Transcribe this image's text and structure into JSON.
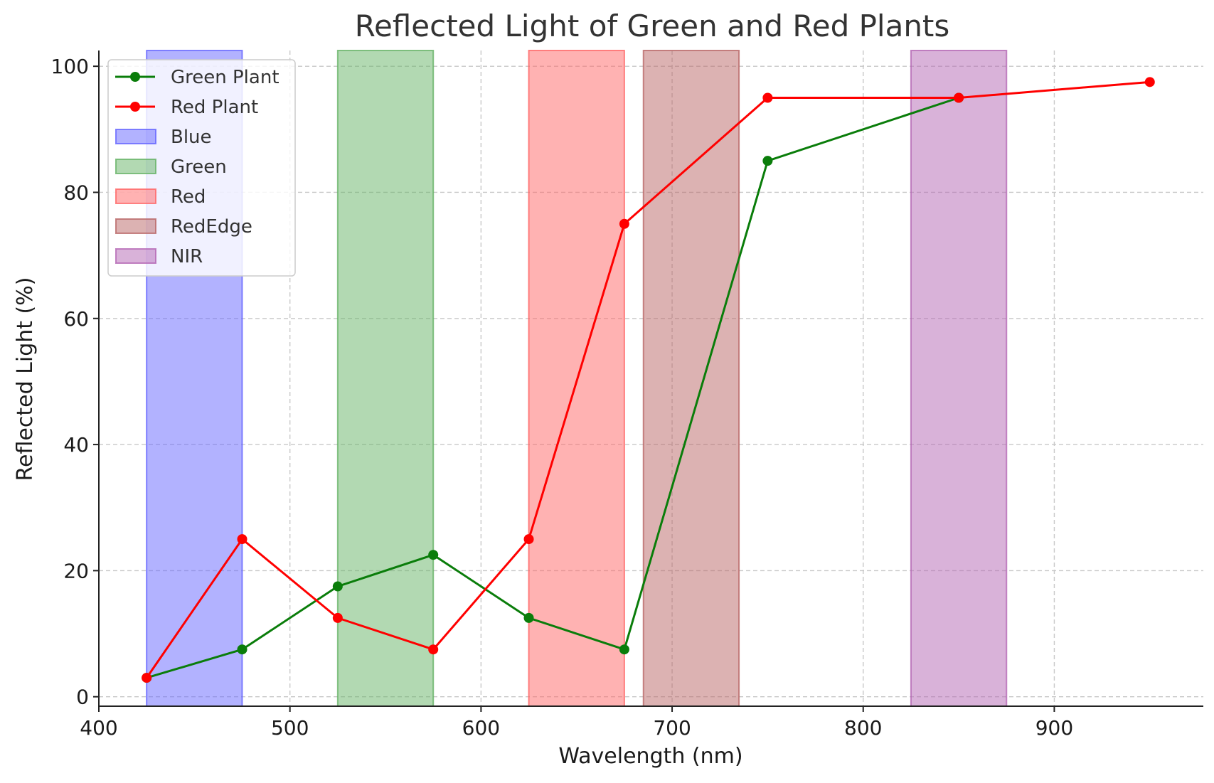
{
  "chart_data": {
    "type": "line",
    "title": "Reflected Light of Green and Red Plants",
    "xlabel": "Wavelength (nm)",
    "ylabel": "Reflected Light (%)",
    "xlim": [
      400,
      978
    ],
    "ylim": [
      -1.5,
      102.5
    ],
    "xticks": [
      400,
      500,
      600,
      700,
      800,
      900
    ],
    "yticks": [
      0,
      20,
      40,
      60,
      80,
      100
    ],
    "grid": true,
    "legend_position": "upper-left",
    "x": [
      425,
      475,
      525,
      575,
      625,
      675,
      750,
      850,
      950
    ],
    "series": [
      {
        "name": "Green Plant",
        "color": "#0a7d0a",
        "x": [
          425,
          475,
          525,
          575,
          625,
          675,
          750,
          850
        ],
        "values": [
          3,
          7.5,
          17.5,
          22.5,
          12.5,
          7.5,
          85,
          95
        ]
      },
      {
        "name": "Red Plant",
        "color": "#ff0000",
        "x": [
          425,
          475,
          525,
          575,
          625,
          675,
          750,
          850,
          950
        ],
        "values": [
          3,
          25,
          12.5,
          7.5,
          25,
          75,
          95,
          95,
          97.5
        ]
      }
    ],
    "bands": [
      {
        "name": "Blue",
        "x0": 425,
        "x1": 475,
        "color": "#6666ff"
      },
      {
        "name": "Green",
        "x0": 525,
        "x1": 575,
        "color": "#66b366"
      },
      {
        "name": "Red",
        "x0": 625,
        "x1": 675,
        "color": "#ff6666"
      },
      {
        "name": "RedEdge",
        "x0": 685,
        "x1": 735,
        "color": "#b96666"
      },
      {
        "name": "NIR",
        "x0": 825,
        "x1": 875,
        "color": "#b466b4"
      }
    ]
  }
}
